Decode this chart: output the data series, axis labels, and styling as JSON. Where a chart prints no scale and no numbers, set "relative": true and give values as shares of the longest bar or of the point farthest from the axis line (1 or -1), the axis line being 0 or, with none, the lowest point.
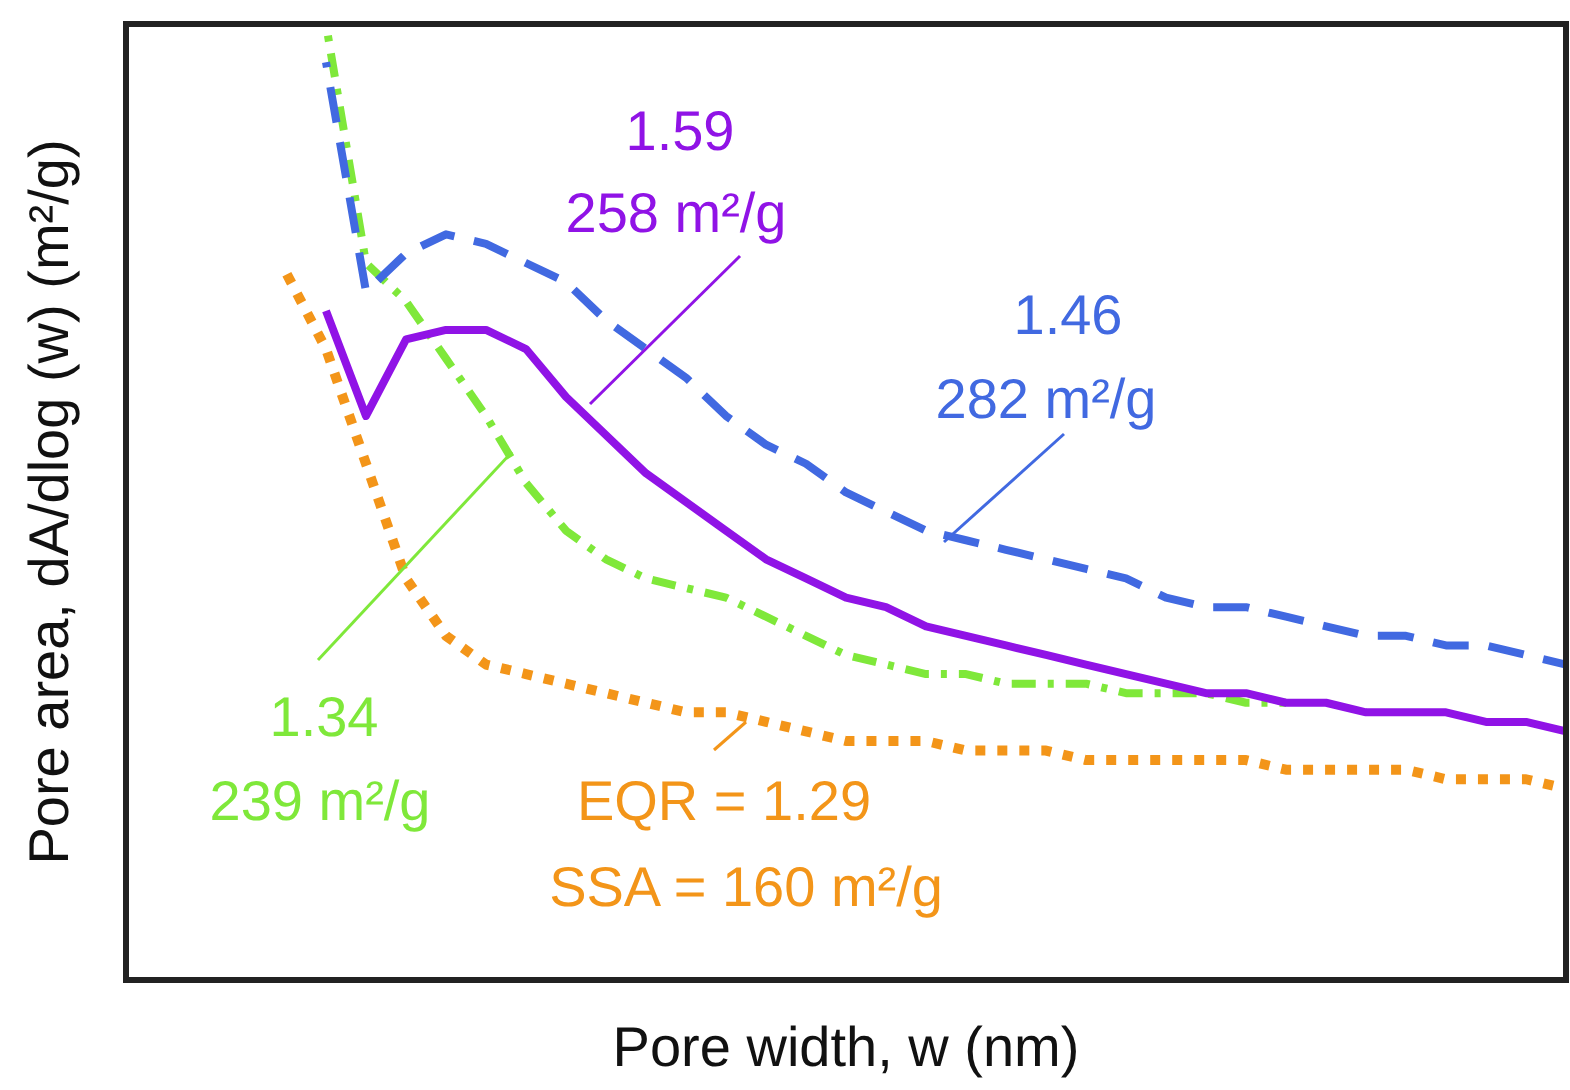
{
  "chart_data": {
    "type": "line",
    "relative": true,
    "xlabel": "Pore width, w (nm)",
    "ylabel": "Pore area, dA/dlog (w) (m²/g)",
    "legend": false,
    "marker": "none",
    "categories": [
      null,
      null,
      null,
      null,
      null,
      null,
      null,
      null,
      null,
      null,
      null,
      null,
      null,
      null,
      null,
      null,
      null,
      null,
      null,
      null,
      null,
      null,
      null,
      null,
      null,
      null,
      null,
      null,
      null,
      null,
      null,
      null,
      null,
      null,
      null,
      null,
      null
    ],
    "series": [
      {
        "color": "#9013e6",
        "line_style": "solid",
        "values": [
          null,
          null,
          null,
          null,
          null,
          0.7,
          0.59,
          0.67,
          0.68,
          0.68,
          0.66,
          0.61,
          0.57,
          0.53,
          0.5,
          0.47,
          0.44,
          0.42,
          0.4,
          0.39,
          0.37,
          0.36,
          0.35,
          0.34,
          0.33,
          0.32,
          0.31,
          0.3,
          0.3,
          0.29,
          0.29,
          0.28,
          0.28,
          0.28,
          0.27,
          0.27,
          0.26
        ]
      },
      {
        "color": "#4169e1",
        "line_style": "dashed",
        "values": [
          null,
          null,
          null,
          null,
          null,
          0.96,
          0.72,
          0.76,
          0.78,
          0.77,
          0.75,
          0.73,
          0.69,
          0.66,
          0.63,
          0.59,
          0.56,
          0.54,
          0.51,
          0.49,
          0.47,
          0.46,
          0.45,
          0.44,
          0.43,
          0.42,
          0.4,
          0.39,
          0.39,
          0.38,
          0.37,
          0.36,
          0.36,
          0.35,
          0.35,
          0.34,
          0.33
        ]
      },
      {
        "color": "#7fe83a",
        "line_style": "dashdot",
        "values": [
          null,
          null,
          null,
          null,
          null,
          1.0,
          0.75,
          0.71,
          0.65,
          0.59,
          0.52,
          0.47,
          0.44,
          0.42,
          0.41,
          0.4,
          0.38,
          0.36,
          0.34,
          0.33,
          0.32,
          0.32,
          0.31,
          0.31,
          0.31,
          0.3,
          0.3,
          0.3,
          0.29,
          0.29,
          null,
          null,
          null,
          null,
          null,
          null,
          null
        ]
      },
      {
        "color": "#f39519",
        "line_style": "dotted",
        "values": [
          null,
          null,
          null,
          null,
          0.74,
          0.66,
          0.54,
          0.42,
          0.36,
          0.33,
          0.32,
          0.31,
          0.3,
          0.29,
          0.28,
          0.28,
          0.27,
          0.26,
          0.25,
          0.25,
          0.25,
          0.24,
          0.24,
          0.24,
          0.23,
          0.23,
          0.23,
          0.23,
          0.23,
          0.22,
          0.22,
          0.22,
          0.22,
          0.21,
          0.21,
          0.21,
          0.2
        ]
      }
    ],
    "annotations": [
      "1.59",
      "258 m²/g",
      "1.46",
      "282 m²/g",
      "1.34",
      "239 m²/g",
      "EQR = 1.29",
      "SSA = 160 m²/g"
    ]
  }
}
